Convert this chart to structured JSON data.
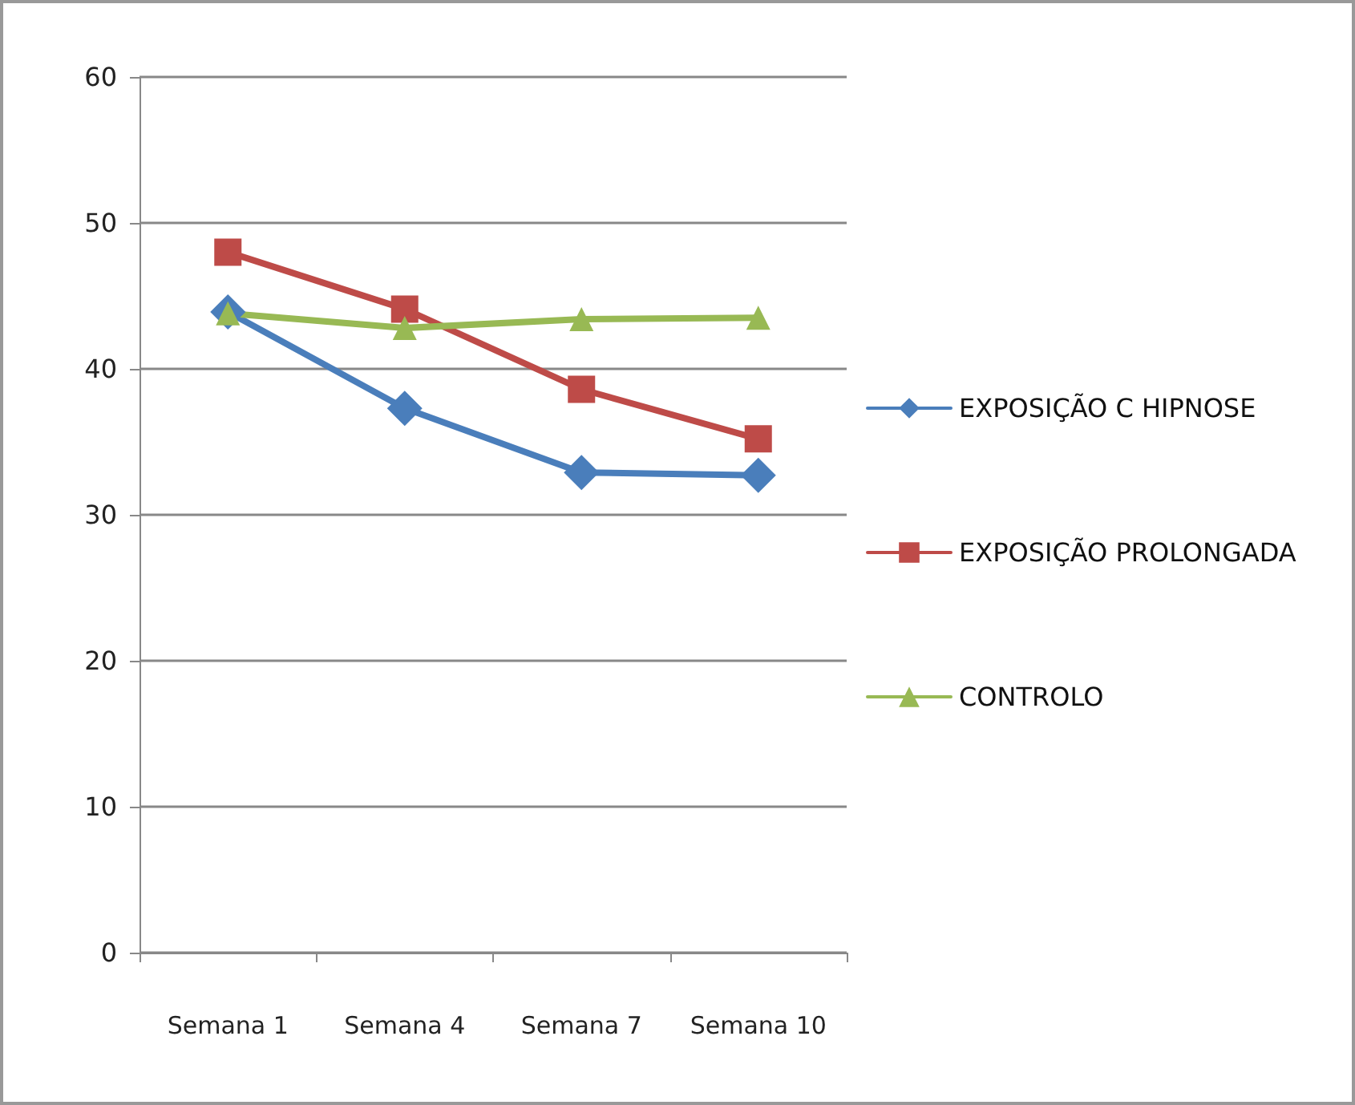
{
  "chart_data": {
    "type": "line",
    "categories": [
      "Semana 1",
      "Semana 4",
      "Semana 7",
      "Semana 10"
    ],
    "series": [
      {
        "name": "EXPOSIÇÃO C HIPNOSE",
        "color": "#4a7ebb",
        "marker": "diamond",
        "values": [
          43.9,
          37.3,
          32.9,
          32.7
        ]
      },
      {
        "name": "EXPOSIÇÃO PROLONGADA",
        "color": "#be4b48",
        "marker": "square",
        "values": [
          48.0,
          44.1,
          38.6,
          35.2
        ]
      },
      {
        "name": "CONTROLO",
        "color": "#98b954",
        "marker": "triangle",
        "values": [
          43.8,
          42.8,
          43.4,
          43.5
        ]
      }
    ],
    "ylim": [
      0,
      60
    ],
    "yticks": [
      0,
      10,
      20,
      30,
      40,
      50,
      60
    ],
    "grid": "y",
    "legend": "right"
  }
}
